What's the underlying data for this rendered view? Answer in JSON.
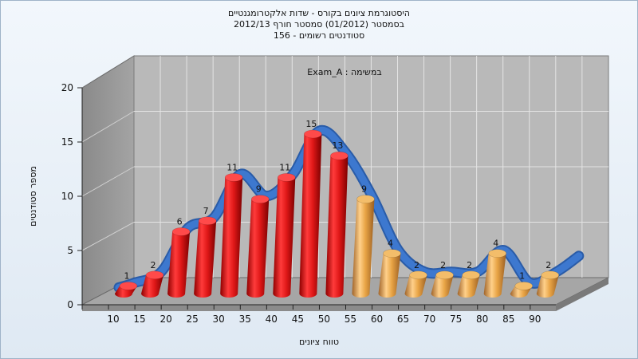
{
  "chart_data": {
    "type": "bar",
    "title_lines": [
      "היסטוגרמת ציונים בקורס - שדות אלקטרומגנטיים",
      "בסמסטר  (01/2012)  סמסטר חורף 2012/13",
      "סטודנטים רשומים - 156"
    ],
    "annotation": "Exam_A : במשימה",
    "xlabel": "טווח ציונים",
    "ylabel": "מספר סטודנטים",
    "categories": [
      "10",
      "15",
      "20",
      "25",
      "30",
      "35",
      "40",
      "45",
      "50",
      "55",
      "60",
      "65",
      "70",
      "75",
      "80",
      "85",
      "90"
    ],
    "values": [
      1,
      2,
      6,
      7,
      11,
      9,
      11,
      15,
      13,
      9,
      4,
      2,
      2,
      2,
      4,
      1,
      2
    ],
    "y_ticks": [
      "0",
      "5",
      "10",
      "15",
      "20"
    ],
    "ylim": [
      0,
      20
    ],
    "grid": true,
    "series": [
      {
        "name": "",
        "kind": "bar",
        "color_low": "#e01818",
        "color_high": "#e8a445"
      },
      {
        "name": "",
        "kind": "smooth-line",
        "color": "#3a72c4"
      }
    ],
    "highlight_from_index": 9
  }
}
